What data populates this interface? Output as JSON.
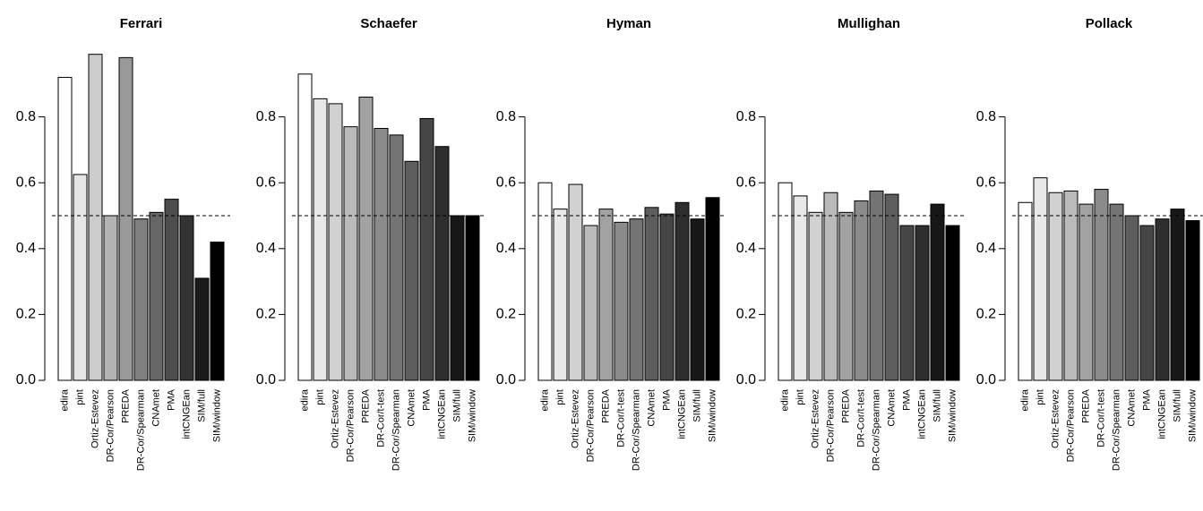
{
  "chart_data": [
    {
      "type": "bar",
      "title": "Ferrari",
      "categories": [
        "edira",
        "pint",
        "Ortiz-Estevez",
        "DR-Cor/Pearson",
        "PREDA",
        "DR-Cor/Spearman",
        "CNAmet",
        "PMA",
        "intCNGEan",
        "SIM/full",
        "SIM/window"
      ],
      "values": [
        0.92,
        0.625,
        0.99,
        0.5,
        0.98,
        0.49,
        0.51,
        0.55,
        0.5,
        0.31,
        0.42
      ],
      "colors": [
        "#ffffff",
        "#e6e6e6",
        "#cccccc",
        "#b3b3b3",
        "#999999",
        "#808080",
        "#666666",
        "#4d4d4d",
        "#333333",
        "#1a1a1a",
        "#000000"
      ],
      "ylim": [
        0,
        1
      ],
      "yticks": [
        {
          "value": 0,
          "label": "0.0"
        },
        0.2,
        0.4,
        0.6,
        0.8
      ],
      "hline": 0.5
    },
    {
      "type": "bar",
      "title": "Schaefer",
      "categories": [
        "edira",
        "pint",
        "Ortiz-Estevez",
        "DR-Cor/Pearson",
        "PREDA",
        "DR-Cor/t-test",
        "DR-Cor/Spearman",
        "CNAmet",
        "PMA",
        "intCNGEan",
        "SIM/full",
        "SIM/window"
      ],
      "values": [
        0.93,
        0.855,
        0.84,
        0.77,
        0.86,
        0.765,
        0.745,
        0.665,
        0.795,
        0.71,
        0.5,
        0.5
      ],
      "colors": [
        "#ffffff",
        "#e8e8e8",
        "#d1d1d1",
        "#bababa",
        "#a2a2a2",
        "#8b8b8b",
        "#747474",
        "#5d5d5d",
        "#464646",
        "#2e2e2e",
        "#171717",
        "#000000"
      ],
      "ylim": [
        0,
        1
      ],
      "yticks": [
        {
          "value": 0,
          "label": "0.0"
        },
        0.2,
        0.4,
        0.6,
        0.8
      ],
      "hline": 0.5
    },
    {
      "type": "bar",
      "title": "Hyman",
      "categories": [
        "edira",
        "pint",
        "Ortiz-Estevez",
        "DR-Cor/Pearson",
        "PREDA",
        "DR-Cor/t-test",
        "DR-Cor/Spearman",
        "CNAmet",
        "PMA",
        "intCNGEan",
        "SIM/full",
        "SIM/window"
      ],
      "values": [
        0.6,
        0.52,
        0.595,
        0.47,
        0.52,
        0.48,
        0.49,
        0.525,
        0.505,
        0.54,
        0.49,
        0.555
      ],
      "colors": [
        "#ffffff",
        "#e8e8e8",
        "#d1d1d1",
        "#bababa",
        "#a2a2a2",
        "#8b8b8b",
        "#747474",
        "#5d5d5d",
        "#464646",
        "#2e2e2e",
        "#171717",
        "#000000"
      ],
      "ylim": [
        0,
        1
      ],
      "yticks": [
        {
          "value": 0,
          "label": "0.0"
        },
        0.2,
        0.4,
        0.6,
        0.8
      ],
      "hline": 0.5
    },
    {
      "type": "bar",
      "title": "Mullighan",
      "categories": [
        "edira",
        "pint",
        "Ortiz-Estevez",
        "DR-Cor/Pearson",
        "PREDA",
        "DR-Cor/t-test",
        "DR-Cor/Spearman",
        "CNAmet",
        "PMA",
        "intCNGEan",
        "SIM/full",
        "SIM/window"
      ],
      "values": [
        0.6,
        0.56,
        0.51,
        0.57,
        0.51,
        0.545,
        0.575,
        0.565,
        0.47,
        0.47,
        0.535,
        0.47
      ],
      "colors": [
        "#ffffff",
        "#e8e8e8",
        "#d1d1d1",
        "#bababa",
        "#a2a2a2",
        "#8b8b8b",
        "#747474",
        "#5d5d5d",
        "#464646",
        "#2e2e2e",
        "#171717",
        "#000000"
      ],
      "ylim": [
        0,
        1
      ],
      "yticks": [
        {
          "value": 0,
          "label": "0.0"
        },
        0.2,
        0.4,
        0.6,
        0.8
      ],
      "hline": 0.5
    },
    {
      "type": "bar",
      "title": "Pollack",
      "categories": [
        "edira",
        "pint",
        "Ortiz-Estevez",
        "DR-Cor/Pearson",
        "PREDA",
        "DR-Cor/t-test",
        "DR-Cor/Spearman",
        "CNAmet",
        "PMA",
        "intCNGEan",
        "SIM/full",
        "SIM/window"
      ],
      "values": [
        0.54,
        0.615,
        0.57,
        0.575,
        0.535,
        0.58,
        0.535,
        0.5,
        0.47,
        0.49,
        0.52,
        0.485
      ],
      "colors": [
        "#ffffff",
        "#e8e8e8",
        "#d1d1d1",
        "#bababa",
        "#a2a2a2",
        "#8b8b8b",
        "#747474",
        "#5d5d5d",
        "#464646",
        "#2e2e2e",
        "#171717",
        "#000000"
      ],
      "ylim": [
        0,
        1
      ],
      "yticks": [
        {
          "value": 0,
          "label": "0.0"
        },
        0.2,
        0.4,
        0.6,
        0.8
      ],
      "hline": 0.5
    }
  ]
}
